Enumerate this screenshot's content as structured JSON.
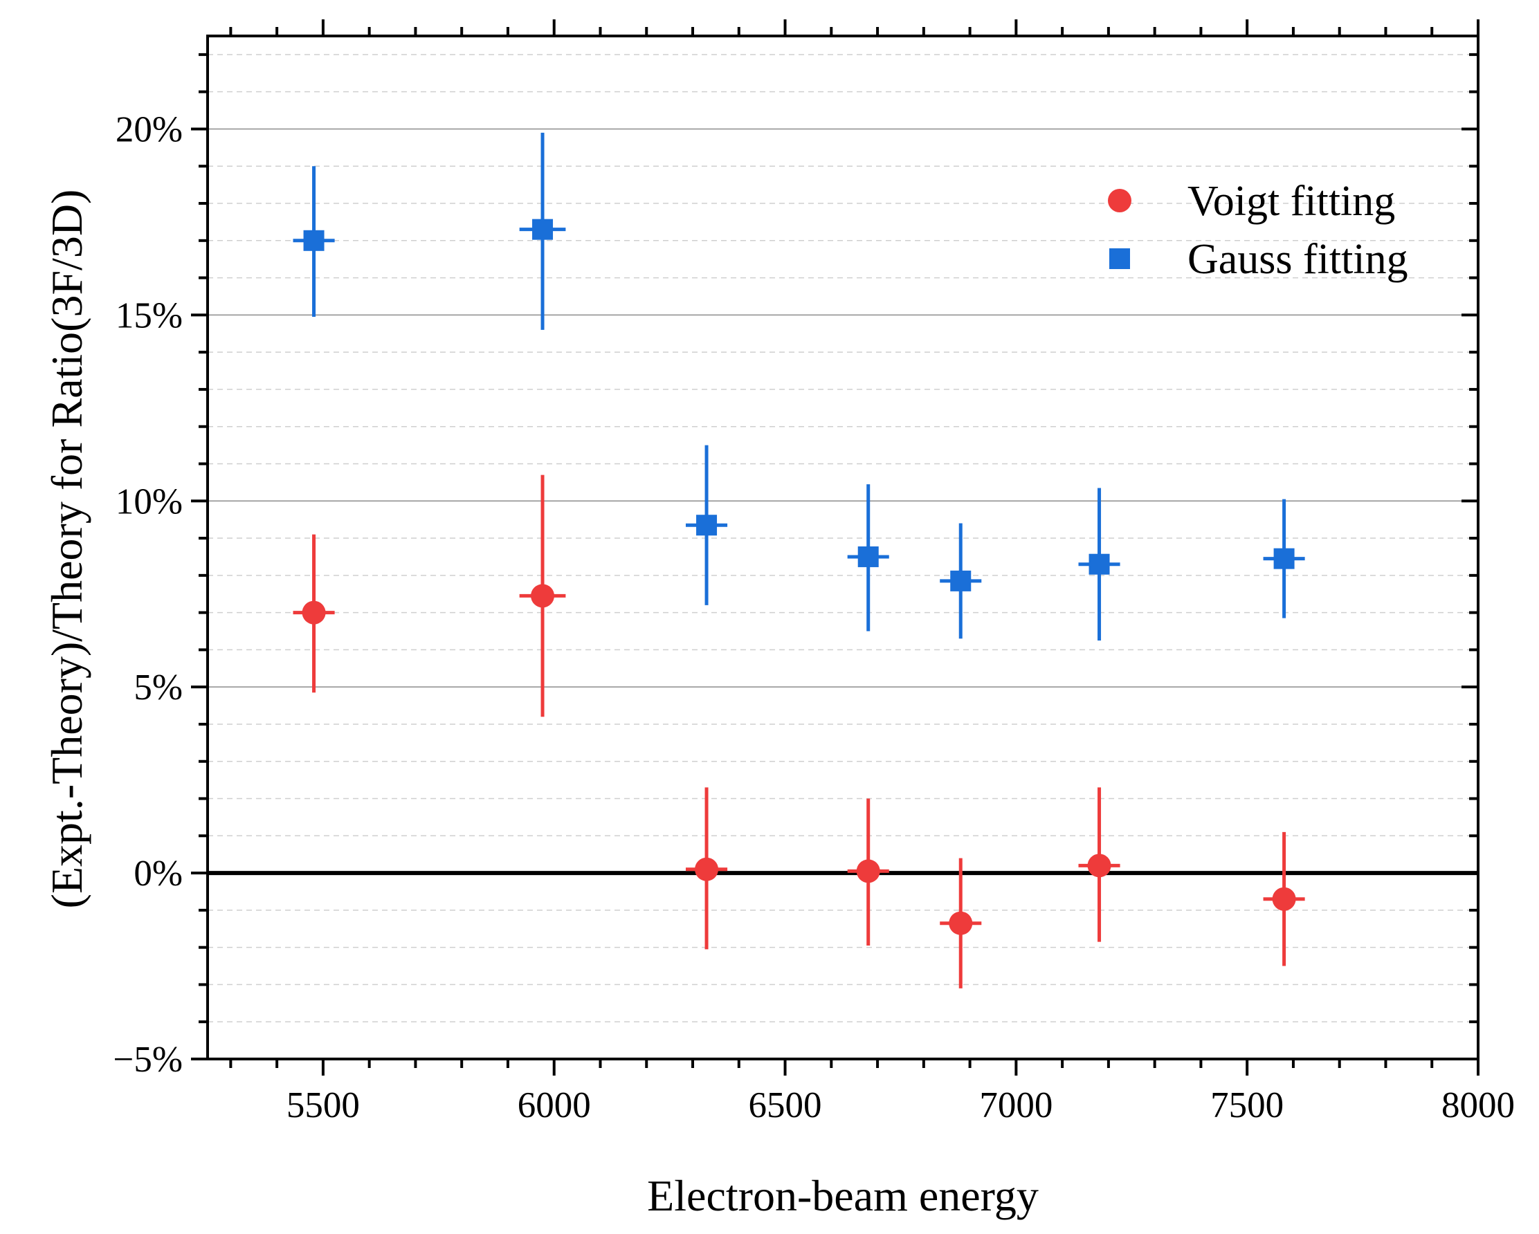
{
  "chart_data": {
    "type": "scatter",
    "title": "",
    "xlabel": "Electron-beam energy",
    "ylabel": "(Expt.-Theory)/Theory for Ratio(3F/3D)",
    "xlim": [
      5250,
      8000
    ],
    "ylim": [
      -5,
      22.5
    ],
    "xticks": [
      5500,
      6000,
      6500,
      7000,
      7500,
      8000
    ],
    "xtick_labels": [
      "5500",
      "6000",
      "6500",
      "7000",
      "7500",
      "8000"
    ],
    "yticks": [
      -5,
      0,
      5,
      10,
      15,
      20
    ],
    "ytick_labels": [
      "−5%",
      "0%",
      "5%",
      "10%",
      "15%",
      "20%"
    ],
    "x_minor_step": 100,
    "y_minor_step": 1,
    "grid": {
      "major_y": true,
      "minor_y": "dashed"
    },
    "reference_line": {
      "y": 0
    },
    "legend": {
      "position": "top-right"
    },
    "series": [
      {
        "name": "Voigt fitting",
        "marker": "circle",
        "color": "#ee3b3b",
        "points": [
          {
            "x": 5480,
            "y": 7.0,
            "err_low": 2.15,
            "err_high": 2.1,
            "xerr": 45
          },
          {
            "x": 5975,
            "y": 7.45,
            "err_low": 3.25,
            "err_high": 3.25,
            "xerr": 50
          },
          {
            "x": 6330,
            "y": 0.1,
            "err_low": 2.15,
            "err_high": 2.2,
            "xerr": 45
          },
          {
            "x": 6680,
            "y": 0.05,
            "err_low": 2.0,
            "err_high": 1.95,
            "xerr": 45
          },
          {
            "x": 6880,
            "y": -1.35,
            "err_low": 1.75,
            "err_high": 1.75,
            "xerr": 45
          },
          {
            "x": 7180,
            "y": 0.2,
            "err_low": 2.05,
            "err_high": 2.1,
            "xerr": 45
          },
          {
            "x": 7580,
            "y": -0.7,
            "err_low": 1.8,
            "err_high": 1.8,
            "xerr": 45
          }
        ]
      },
      {
        "name": "Gauss fitting",
        "marker": "square",
        "color": "#1a6fd8",
        "points": [
          {
            "x": 5480,
            "y": 17.0,
            "err_low": 2.05,
            "err_high": 2.0,
            "xerr": 45
          },
          {
            "x": 5975,
            "y": 17.3,
            "err_low": 2.7,
            "err_high": 2.6,
            "xerr": 50
          },
          {
            "x": 6330,
            "y": 9.35,
            "err_low": 2.15,
            "err_high": 2.15,
            "xerr": 45
          },
          {
            "x": 6680,
            "y": 8.5,
            "err_low": 2.0,
            "err_high": 1.95,
            "xerr": 45
          },
          {
            "x": 6880,
            "y": 7.85,
            "err_low": 1.55,
            "err_high": 1.55,
            "xerr": 45
          },
          {
            "x": 7180,
            "y": 8.3,
            "err_low": 2.05,
            "err_high": 2.05,
            "xerr": 45
          },
          {
            "x": 7580,
            "y": 8.45,
            "err_low": 1.6,
            "err_high": 1.6,
            "xerr": 45
          }
        ]
      }
    ]
  }
}
